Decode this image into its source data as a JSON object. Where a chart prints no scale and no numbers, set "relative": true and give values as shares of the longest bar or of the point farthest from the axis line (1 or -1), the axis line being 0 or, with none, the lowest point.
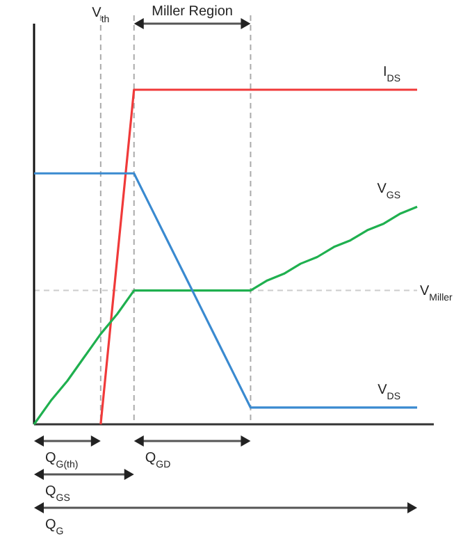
{
  "chart_data": {
    "type": "line",
    "relative": true,
    "categories": [
      null,
      null,
      null,
      null,
      null,
      null,
      null,
      null,
      null,
      null,
      null,
      null,
      null,
      null,
      null,
      null,
      null,
      null,
      null,
      null,
      null,
      null,
      null,
      null,
      null
    ],
    "series": [
      {
        "name": "I$_{DS}$",
        "color": "#f03a3a",
        "values": [
          null,
          null,
          null,
          null,
          0,
          0.5,
          1,
          1,
          1,
          1,
          1,
          1,
          1,
          1,
          1,
          1,
          1,
          1,
          1,
          1,
          1,
          1,
          1,
          1,
          null
        ]
      },
      {
        "name": "V$_{GS}$",
        "color": "#1fb04f",
        "values": [
          0,
          0.07,
          0.13,
          0.2,
          0.27,
          0.33,
          0.4,
          0.4,
          0.4,
          0.4,
          0.4,
          0.4,
          0.4,
          0.4,
          0.43,
          0.45,
          0.48,
          0.5,
          0.53,
          0.55,
          0.58,
          0.6,
          0.63,
          0.65,
          null
        ]
      },
      {
        "name": "V$_{DS}$",
        "color": "#3a8ad0",
        "values": [
          0.75,
          0.75,
          0.75,
          0.75,
          0.75,
          0.75,
          0.75,
          0.65,
          0.55,
          0.45,
          0.35,
          0.25,
          0.15,
          0.05,
          0.05,
          0.05,
          0.05,
          0.05,
          0.05,
          0.05,
          0.05,
          0.05,
          0.05,
          0.05,
          null
        ]
      }
    ],
    "grid": "x",
    "ref_lines": [
      {
        "axis": "y",
        "value": 0.4,
        "label": "V$_{Miller}$",
        "color": "#cccccc",
        "line_style": "dashed"
      }
    ],
    "annotations": [
      "V$_{th}$",
      "Miller Region",
      "Q$_{G(th)}$",
      "Q$_{GD}$",
      "Q$_{GS}$",
      "Q$_{G}$"
    ]
  }
}
